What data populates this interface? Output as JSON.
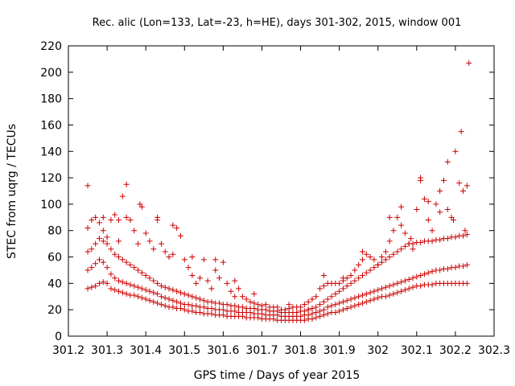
{
  "chart_data": {
    "type": "scatter",
    "title": "Rec. alic (Lon=133, Lat=-23, h=HE), days 301-302, 2015, window 001",
    "xlabel": "GPS time / Days of year 2015",
    "ylabel": "STEC from uqrg / TECUs",
    "xlim": [
      301.2,
      302.3
    ],
    "ylim": [
      0,
      220
    ],
    "xticks": [
      "301.2",
      "301.3",
      "301.4",
      "301.5",
      "301.6",
      "301.7",
      "301.8",
      "301.9",
      "302",
      "302.1",
      "302.2",
      "302.3"
    ],
    "yticks": [
      "0",
      "20",
      "40",
      "60",
      "80",
      "100",
      "120",
      "140",
      "160",
      "180",
      "200",
      "220"
    ],
    "grid": false,
    "legend": "none",
    "marker": "+",
    "color": "#cc0000",
    "series": [
      {
        "x": [
          301.25,
          301.26,
          301.27,
          301.28,
          301.29,
          301.3,
          301.31,
          301.32,
          301.33,
          301.34,
          301.35,
          301.36,
          301.37,
          301.38,
          301.39,
          301.4,
          301.41,
          301.42,
          301.43,
          301.44,
          301.45,
          301.46,
          301.47,
          301.48,
          301.49,
          301.5,
          301.51,
          301.52,
          301.53,
          301.54,
          301.55,
          301.56,
          301.57,
          301.58,
          301.59,
          301.6,
          301.61,
          301.62,
          301.63,
          301.64,
          301.65,
          301.66,
          301.67,
          301.68,
          301.69,
          301.7,
          301.71,
          301.72,
          301.73,
          301.74,
          301.75,
          301.76,
          301.77,
          301.78,
          301.79,
          301.8,
          301.81,
          301.82,
          301.83,
          301.84,
          301.85,
          301.86,
          301.87,
          301.88,
          301.89,
          301.9,
          301.91,
          301.92,
          301.93,
          301.94,
          301.95,
          301.96,
          301.97,
          301.98,
          301.99,
          302.0,
          302.01,
          302.02,
          302.03,
          302.04,
          302.05,
          302.06,
          302.07,
          302.08,
          302.09,
          302.1,
          302.11,
          302.12,
          302.13,
          302.14,
          302.15,
          302.16,
          302.17,
          302.18,
          302.19,
          302.2,
          302.21,
          302.22,
          302.23
        ],
        "y": [
          36,
          37,
          38,
          40,
          41,
          40,
          36,
          35,
          34,
          33,
          32,
          31,
          31,
          30,
          29,
          28,
          27,
          26,
          25,
          24,
          23,
          22,
          22,
          21,
          21,
          20,
          19,
          19,
          18,
          18,
          17,
          17,
          17,
          16,
          16,
          16,
          15,
          15,
          15,
          15,
          15,
          14,
          14,
          14,
          14,
          13,
          13,
          13,
          13,
          12,
          12,
          12,
          12,
          12,
          12,
          12,
          12,
          13,
          13,
          14,
          15,
          16,
          17,
          18,
          18,
          19,
          20,
          21,
          22,
          23,
          24,
          25,
          26,
          27,
          28,
          29,
          30,
          30,
          31,
          32,
          33,
          34,
          35,
          36,
          37,
          38,
          38,
          39,
          39,
          39,
          40,
          40,
          40,
          40,
          40,
          40,
          40,
          40,
          40
        ]
      },
      {
        "x": [
          301.25,
          301.26,
          301.27,
          301.28,
          301.29,
          301.3,
          301.31,
          301.32,
          301.33,
          301.34,
          301.35,
          301.36,
          301.37,
          301.38,
          301.39,
          301.4,
          301.41,
          301.42,
          301.43,
          301.44,
          301.45,
          301.46,
          301.47,
          301.48,
          301.49,
          301.5,
          301.51,
          301.52,
          301.53,
          301.54,
          301.55,
          301.56,
          301.57,
          301.58,
          301.59,
          301.6,
          301.61,
          301.62,
          301.63,
          301.64,
          301.65,
          301.66,
          301.67,
          301.68,
          301.69,
          301.7,
          301.71,
          301.72,
          301.73,
          301.74,
          301.75,
          301.76,
          301.77,
          301.78,
          301.79,
          301.8,
          301.81,
          301.82,
          301.83,
          301.84,
          301.85,
          301.86,
          301.87,
          301.88,
          301.89,
          301.9,
          301.91,
          301.92,
          301.93,
          301.94,
          301.95,
          301.96,
          301.97,
          301.98,
          301.99,
          302.0,
          302.01,
          302.02,
          302.03,
          302.04,
          302.05,
          302.06,
          302.07,
          302.08,
          302.09,
          302.1,
          302.11,
          302.12,
          302.13,
          302.14,
          302.15,
          302.16,
          302.17,
          302.18,
          302.19,
          302.2,
          302.21,
          302.22,
          302.23
        ],
        "y": [
          50,
          52,
          55,
          58,
          56,
          52,
          47,
          44,
          42,
          41,
          40,
          39,
          38,
          37,
          36,
          35,
          34,
          33,
          32,
          30,
          29,
          28,
          27,
          26,
          25,
          24,
          24,
          23,
          23,
          22,
          22,
          21,
          21,
          20,
          20,
          20,
          19,
          19,
          19,
          18,
          18,
          18,
          18,
          17,
          17,
          17,
          16,
          16,
          16,
          16,
          15,
          15,
          15,
          15,
          15,
          15,
          16,
          16,
          17,
          18,
          19,
          20,
          22,
          23,
          24,
          25,
          26,
          27,
          28,
          29,
          30,
          31,
          32,
          33,
          34,
          35,
          36,
          37,
          38,
          39,
          40,
          41,
          42,
          43,
          44,
          45,
          46,
          47,
          48,
          49,
          50,
          50,
          51,
          51,
          52,
          52,
          53,
          53,
          54
        ]
      },
      {
        "x": [
          301.25,
          301.26,
          301.27,
          301.28,
          301.29,
          301.3,
          301.31,
          301.32,
          301.33,
          301.34,
          301.35,
          301.36,
          301.37,
          301.38,
          301.39,
          301.4,
          301.41,
          301.42,
          301.43,
          301.44,
          301.45,
          301.46,
          301.47,
          301.48,
          301.49,
          301.5,
          301.51,
          301.52,
          301.53,
          301.54,
          301.55,
          301.56,
          301.57,
          301.58,
          301.59,
          301.6,
          301.61,
          301.62,
          301.63,
          301.64,
          301.65,
          301.66,
          301.67,
          301.68,
          301.69,
          301.7,
          301.71,
          301.72,
          301.73,
          301.74,
          301.75,
          301.76,
          301.77,
          301.78,
          301.79,
          301.8,
          301.81,
          301.82,
          301.83,
          301.84,
          301.85,
          301.86,
          301.87,
          301.88,
          301.89,
          301.9,
          301.91,
          301.92,
          301.93,
          301.94,
          301.95,
          301.96,
          301.97,
          301.98,
          301.99,
          302.0,
          302.01,
          302.02,
          302.03,
          302.04,
          302.05,
          302.06,
          302.07,
          302.08,
          302.09,
          302.1,
          302.11,
          302.12,
          302.13,
          302.14,
          302.15,
          302.16,
          302.17,
          302.18,
          302.19,
          302.2,
          302.21,
          302.22,
          302.23
        ],
        "y": [
          64,
          66,
          70,
          74,
          72,
          70,
          66,
          62,
          60,
          58,
          56,
          54,
          52,
          50,
          48,
          46,
          44,
          42,
          40,
          38,
          37,
          36,
          35,
          34,
          33,
          32,
          31,
          30,
          29,
          28,
          27,
          26,
          26,
          25,
          25,
          24,
          24,
          23,
          23,
          22,
          22,
          21,
          21,
          21,
          20,
          20,
          20,
          19,
          19,
          19,
          18,
          18,
          18,
          18,
          18,
          19,
          19,
          20,
          21,
          22,
          24,
          26,
          28,
          30,
          32,
          34,
          36,
          38,
          40,
          42,
          44,
          46,
          48,
          50,
          52,
          54,
          56,
          58,
          60,
          62,
          64,
          66,
          68,
          70,
          70,
          71,
          71,
          72,
          72,
          72,
          73,
          73,
          74,
          74,
          75,
          75,
          76,
          76,
          77
        ]
      },
      {
        "x": [
          301.25,
          301.26,
          301.27,
          301.28,
          301.29,
          301.3,
          301.31,
          301.32,
          301.33,
          301.34,
          301.35,
          301.36,
          301.37,
          301.38,
          301.39,
          301.4,
          301.41,
          301.42,
          301.43,
          301.44,
          301.45,
          301.46,
          301.47,
          301.48,
          301.49,
          301.5,
          301.51,
          301.52,
          301.53,
          301.54,
          301.55,
          301.56,
          301.57,
          301.58,
          301.59,
          301.6,
          301.61,
          301.62,
          301.63,
          301.64,
          301.65,
          301.66,
          301.67,
          301.68,
          301.69,
          301.7,
          301.71,
          301.72,
          301.73,
          301.74,
          301.75,
          301.76,
          301.77,
          301.78,
          301.79,
          301.8,
          301.81,
          301.82,
          301.83,
          301.84,
          301.85,
          301.86,
          301.87,
          301.88,
          301.89,
          301.9,
          301.91,
          301.92,
          301.93,
          301.94,
          301.95,
          301.96,
          301.97,
          301.98,
          301.99,
          302.0,
          302.01,
          302.02,
          302.03,
          302.04,
          302.05,
          302.06,
          302.07,
          302.08,
          302.09,
          302.1,
          302.11,
          302.12,
          302.13,
          302.14,
          302.15,
          302.16,
          302.17,
          302.18,
          302.19,
          302.2,
          302.21,
          302.22,
          302.23
        ],
        "y": [
          82,
          88,
          90,
          86,
          80,
          75,
          88,
          92,
          72,
          106,
          90,
          88,
          80,
          70,
          98,
          78,
          72,
          66,
          88,
          70,
          64,
          60,
          62,
          82,
          76,
          58,
          52,
          46,
          40,
          44,
          58,
          42,
          36,
          50,
          44,
          56,
          40,
          34,
          30,
          36,
          30,
          28,
          26,
          25,
          24,
          23,
          24,
          22,
          22,
          22,
          20,
          20,
          21,
          22,
          22,
          22,
          24,
          26,
          28,
          30,
          36,
          38,
          40,
          40,
          40,
          40,
          42,
          44,
          46,
          50,
          54,
          58,
          62,
          60,
          58,
          54,
          60,
          64,
          72,
          80,
          90,
          98,
          78,
          70,
          66,
          96,
          118,
          104,
          88,
          80,
          100,
          110,
          118,
          96,
          90,
          140,
          116,
          110,
          114
        ]
      },
      {
        "x": [
          301.25,
          301.29,
          301.33,
          301.35,
          301.385,
          301.43,
          301.47,
          301.52,
          301.58,
          301.63,
          301.68,
          301.77,
          301.82,
          301.86,
          301.91,
          301.96,
          302.03,
          302.06,
          302.085,
          302.11,
          302.13,
          302.16,
          302.18,
          302.195,
          302.215,
          302.225,
          302.235
        ],
        "y": [
          114,
          90,
          88,
          115,
          100,
          90,
          84,
          60,
          58,
          42,
          32,
          24,
          20,
          46,
          44,
          64,
          90,
          84,
          74,
          120,
          102,
          94,
          132,
          88,
          155,
          80,
          207
        ]
      }
    ]
  }
}
